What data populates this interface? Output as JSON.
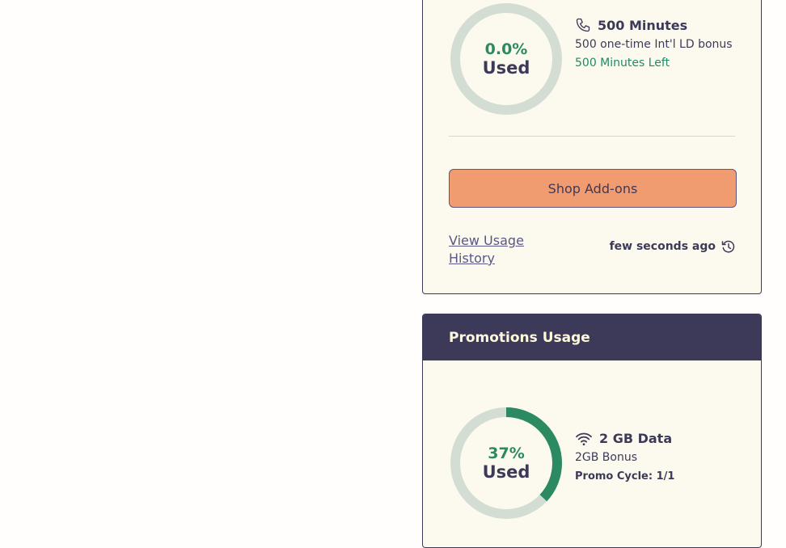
{
  "usage_card": {
    "ring": {
      "percent_label": "0.0%",
      "used_label": "Used",
      "fraction": 0.0,
      "track_color": "#d4ddd3",
      "fill_color": "#2b8a62"
    },
    "title": "500 Minutes",
    "title_icon": "phone-icon",
    "description": "500 one-time Int'l LD bonus",
    "remaining": "500 Minutes Left",
    "shop_button": "Shop Add-ons",
    "history_link": "View Usage History",
    "updated": "few seconds ago",
    "updated_icon": "history-icon"
  },
  "promotions_card": {
    "header": "Promotions Usage",
    "ring": {
      "percent_label": "37%",
      "used_label": "Used",
      "fraction": 0.37,
      "track_color": "#d4ddd3",
      "fill_color": "#2b8a62"
    },
    "title": "2 GB Data",
    "title_icon": "wifi-icon",
    "description": "2GB Bonus",
    "promo_cycle": "Promo Cycle: 1/1"
  }
}
